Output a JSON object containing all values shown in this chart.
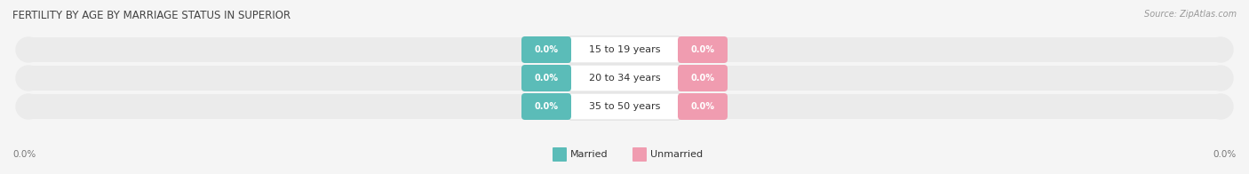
{
  "title": "FERTILITY BY AGE BY MARRIAGE STATUS IN SUPERIOR",
  "source": "Source: ZipAtlas.com",
  "categories": [
    "15 to 19 years",
    "20 to 34 years",
    "35 to 50 years"
  ],
  "married_values": [
    "0.0%",
    "0.0%",
    "0.0%"
  ],
  "unmarried_values": [
    "0.0%",
    "0.0%",
    "0.0%"
  ],
  "married_color": "#5bbcb8",
  "unmarried_color": "#f09cb0",
  "bar_bg_color": "#e8e8e8",
  "label_married": "Married",
  "label_unmarried": "Unmarried",
  "x_left_label": "0.0%",
  "x_right_label": "0.0%",
  "title_fontsize": 8.5,
  "source_fontsize": 7,
  "legend_fontsize": 8,
  "value_fontsize": 7,
  "cat_fontsize": 8,
  "tick_fontsize": 7.5,
  "background_color": "#f5f5f5",
  "bar_facecolor": "#ebebeb",
  "bar_edgecolor": "#d8d8d8"
}
